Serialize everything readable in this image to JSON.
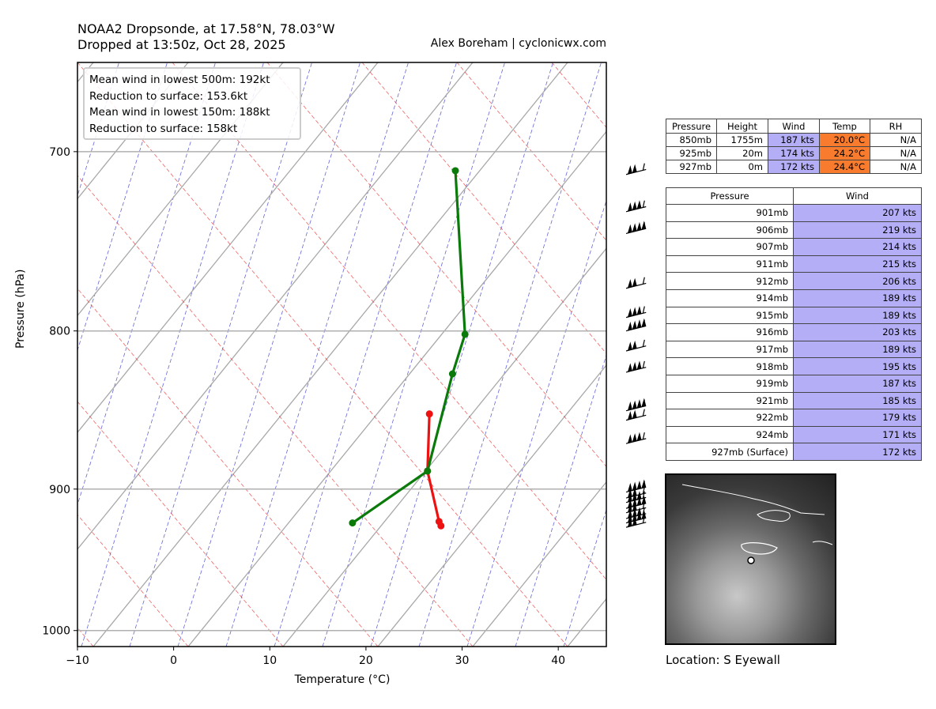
{
  "header": {
    "title_line1": "NOAA2 Dropsonde, at 17.58°N, 78.03°W",
    "title_line2": "Dropped at 13:50z, Oct 28, 2025",
    "credit": "Alex Boreham | cyclonicwx.com"
  },
  "info_box": {
    "lines": [
      "Mean wind in lowest 500m: 192kt",
      "Reduction to surface: 153.6kt",
      "Mean wind in lowest 150m:  188kt",
      "Reduction to surface: 158kt"
    ]
  },
  "chart_data": {
    "type": "line",
    "xlabel": "Temperature (°C)",
    "ylabel": "Pressure (hPa)",
    "xlim": [
      -10,
      45
    ],
    "ylim": [
      1012,
      655
    ],
    "y_scale": "log",
    "grid": true,
    "x_ticks": [
      -10,
      0,
      10,
      20,
      30,
      40
    ],
    "y_ticks": [
      700,
      800,
      900,
      1000
    ],
    "series": [
      {
        "color": "#ee1111",
        "points": [
          {
            "x": 26.6,
            "y": 851
          },
          {
            "x": 26.4,
            "y": 888
          },
          {
            "x": 27.6,
            "y": 922
          },
          {
            "x": 27.8,
            "y": 925
          }
        ]
      },
      {
        "color": "#0a7a0a",
        "points": [
          {
            "x": 29.3,
            "y": 710
          },
          {
            "x": 30.3,
            "y": 802
          },
          {
            "x": 29.0,
            "y": 826
          },
          {
            "x": 26.4,
            "y": 888
          },
          {
            "x": 18.6,
            "y": 923
          }
        ]
      }
    ],
    "wind_barb_pressures": [
      712,
      732,
      744,
      775,
      792,
      800,
      812,
      825,
      849,
      855,
      870,
      902,
      906,
      909,
      913,
      916,
      920,
      923,
      926
    ]
  },
  "levels_table": {
    "headers": [
      "Pressure",
      "Height",
      "Wind",
      "Temp",
      "RH"
    ],
    "rows": [
      [
        "850mb",
        "1755m",
        "187 kts",
        "20.0°C",
        "N/A"
      ],
      [
        "925mb",
        "20m",
        "174 kts",
        "24.2°C",
        "N/A"
      ],
      [
        "927mb",
        "0m",
        "172 kts",
        "24.4°C",
        "N/A"
      ]
    ]
  },
  "wind_table": {
    "headers": [
      "Pressure",
      "Wind"
    ],
    "rows": [
      [
        "901mb",
        "207 kts"
      ],
      [
        "906mb",
        "219 kts"
      ],
      [
        "907mb",
        "214 kts"
      ],
      [
        "911mb",
        "215 kts"
      ],
      [
        "912mb",
        "206 kts"
      ],
      [
        "914mb",
        "189 kts"
      ],
      [
        "915mb",
        "189 kts"
      ],
      [
        "916mb",
        "203 kts"
      ],
      [
        "917mb",
        "189 kts"
      ],
      [
        "918mb",
        "195 kts"
      ],
      [
        "919mb",
        "187 kts"
      ],
      [
        "921mb",
        "185 kts"
      ],
      [
        "922mb",
        "179 kts"
      ],
      [
        "924mb",
        "171 kts"
      ],
      [
        "927mb (Surface)",
        "172 kts"
      ]
    ]
  },
  "location": "Location: S Eyewall",
  "colors": {
    "wind_cell": "#b4aef7",
    "temp_cell": "#f97c2e",
    "isotherm": "#0000cc",
    "dry_adiabat": "#ee2222",
    "skewed_line": "#a8a8a8"
  }
}
